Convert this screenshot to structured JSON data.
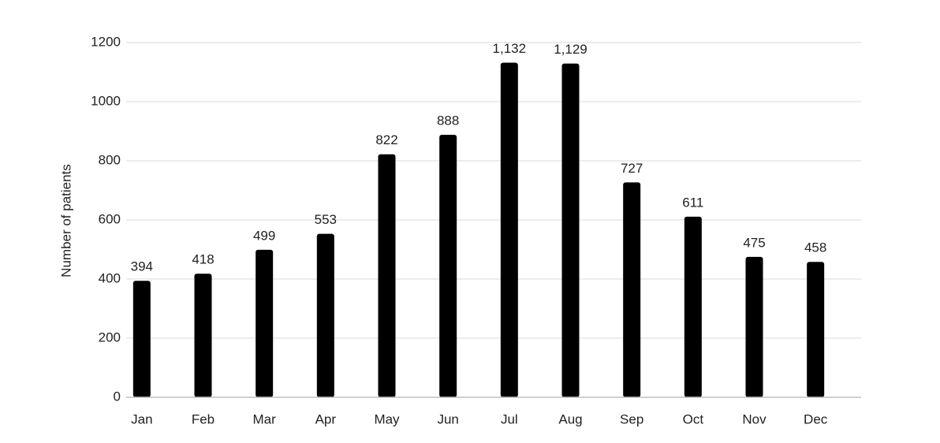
{
  "chart_data": {
    "type": "bar",
    "ylabel": "Number of patients",
    "categories": [
      "Jan",
      "Feb",
      "Mar",
      "Apr",
      "May",
      "Jun",
      "Jul",
      "Aug",
      "Sep",
      "Oct",
      "Nov",
      "Dec"
    ],
    "values": [
      394,
      418,
      499,
      553,
      822,
      888,
      1132,
      1129,
      727,
      611,
      475,
      458
    ],
    "value_labels": [
      "394",
      "418",
      "499",
      "553",
      "822",
      "888",
      "1,132",
      "1,129",
      "727",
      "611",
      "475",
      "458"
    ],
    "color": "#000000",
    "ylim": [
      0,
      1200
    ],
    "yticks": [
      0,
      200,
      400,
      600,
      800,
      1000,
      1200
    ],
    "grid": true
  }
}
